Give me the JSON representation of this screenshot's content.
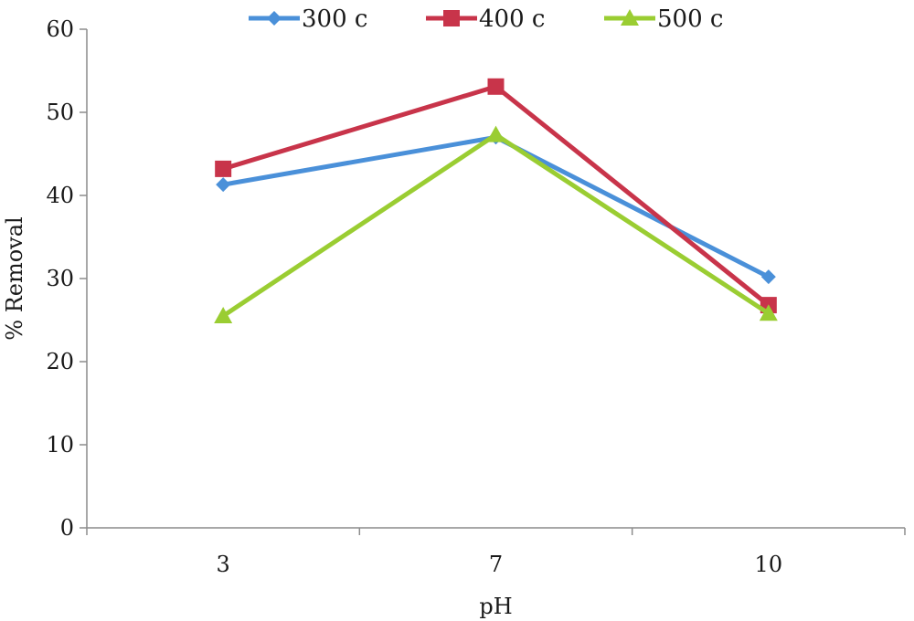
{
  "chart_data": {
    "type": "line",
    "title": "",
    "xlabel": "pH",
    "ylabel": "% Removal",
    "categories": [
      "3",
      "7",
      "10"
    ],
    "ylim": [
      0,
      60
    ],
    "yticks": [
      0,
      10,
      20,
      30,
      40,
      50,
      60
    ],
    "grid": false,
    "legend_position": "top",
    "series": [
      {
        "name": "300 c",
        "values": [
          41.3,
          47.0,
          30.2
        ],
        "color": "#4a90d9",
        "marker": "diamond"
      },
      {
        "name": "400 c",
        "values": [
          43.2,
          53.1,
          26.8
        ],
        "color": "#c8344a",
        "marker": "square"
      },
      {
        "name": "500 c",
        "values": [
          25.5,
          47.3,
          25.8
        ],
        "color": "#9acd32",
        "marker": "triangle"
      }
    ]
  }
}
